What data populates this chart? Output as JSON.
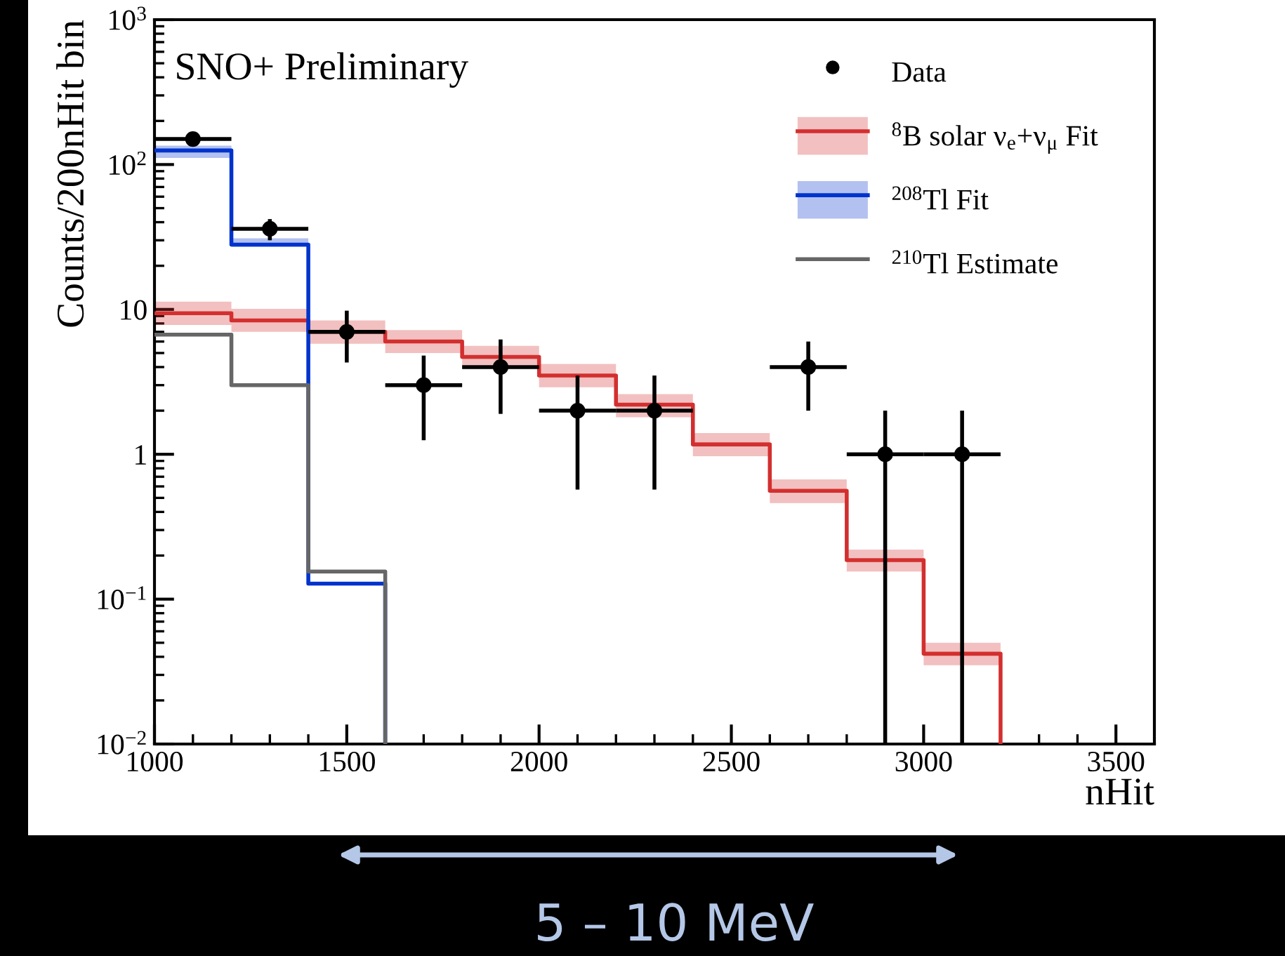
{
  "chart_data": {
    "type": "step",
    "xlabel": "nHit",
    "ylabel": "Counts/200nHit bin",
    "annotations": [
      "SNO+ Preliminary",
      "5 – 10 MeV"
    ],
    "log": "y",
    "grid": false,
    "legend": "top right",
    "xlim": [
      1000,
      3600
    ],
    "xticks": [
      1000,
      1500,
      2000,
      2500,
      3000,
      3500
    ],
    "ylim": [
      0.01,
      1000
    ],
    "yticks": [
      {
        "value": 0.01,
        "label": "10$^{−2}$"
      },
      {
        "value": 0.1,
        "label": "10$^{−1}$"
      },
      1,
      10,
      {
        "value": 100,
        "label": "10$^{2}$"
      },
      {
        "value": 1000,
        "label": "10$^{3}$"
      }
    ],
    "series": [
      {
        "type": "scatter",
        "name": "Data",
        "color": "#000000",
        "marker": "circle",
        "x": [
          1100,
          1300,
          1500,
          1700,
          1900,
          2100,
          2300,
          2700,
          2900,
          3100
        ],
        "values": [
          150,
          36,
          7,
          3,
          4,
          2,
          2,
          4,
          1,
          1
        ],
        "errors": [
          [
            138,
            162
          ],
          [
            30,
            42
          ],
          [
            4.3,
            9.8
          ],
          [
            1.25,
            4.8
          ],
          [
            1.9,
            6.2
          ],
          [
            0.57,
            3.5
          ],
          [
            0.57,
            3.5
          ],
          [
            2,
            6
          ],
          [
            0.01,
            2
          ],
          [
            0.01,
            2
          ]
        ],
        "xerrors": [
          100,
          100,
          100,
          100,
          100,
          100,
          100,
          100,
          100,
          100
        ]
      },
      {
        "name": "$^{8}$B solar ν$_{e}$+ν$_{μ}$ Fit",
        "color": "#d32f2f",
        "x": [
          1000,
          1200,
          1400,
          1600,
          1800,
          2000,
          2200,
          2400,
          2600,
          2800,
          3000,
          3200,
          3200
        ],
        "values": [
          9.4,
          8.4,
          7.0,
          6.0,
          4.7,
          3.5,
          2.2,
          1.17,
          0.56,
          0.186,
          0.042,
          0.042,
          0.01
        ],
        "lower": [
          7.8,
          7.0,
          5.8,
          5.0,
          3.9,
          2.9,
          1.8,
          0.97,
          0.46,
          0.155,
          0.035,
          0.035,
          null
        ],
        "upper": [
          11.3,
          10.1,
          8.4,
          7.2,
          5.6,
          4.2,
          2.6,
          1.4,
          0.67,
          0.22,
          0.05,
          0.05,
          null
        ]
      },
      {
        "name": "$^{208}$Tl Fit",
        "color": "#0033cc",
        "x": [
          1000,
          1200,
          1400,
          1600,
          1600
        ],
        "values": [
          125,
          28,
          0.128,
          0.128,
          0.01
        ],
        "lower": [
          111,
          27,
          0.125,
          0.125,
          null
        ],
        "upper": [
          135,
          31,
          0.131,
          0.131,
          null
        ]
      },
      {
        "name": "$^{210}$Tl Estimate",
        "color": "#666666",
        "x": [
          1000,
          1200,
          1400,
          1600,
          1600
        ],
        "values": [
          6.7,
          3.0,
          0.155,
          0.155,
          0.01
        ]
      }
    ]
  }
}
